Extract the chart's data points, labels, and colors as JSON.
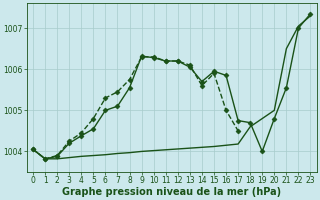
{
  "bg_color": "#cce8ec",
  "grid_color": "#a8cccc",
  "line_color": "#1a5218",
  "xlabel": "Graphe pression niveau de la mer (hPa)",
  "xlabel_fontsize": 7,
  "tick_fontsize": 5.5,
  "xlim": [
    -0.5,
    23.5
  ],
  "ylim": [
    1003.5,
    1007.6
  ],
  "yticks": [
    1004,
    1005,
    1006,
    1007
  ],
  "xticks": [
    0,
    1,
    2,
    3,
    4,
    5,
    6,
    7,
    8,
    9,
    10,
    11,
    12,
    13,
    14,
    15,
    16,
    17,
    18,
    19,
    20,
    21,
    22,
    23
  ],
  "series": [
    {
      "x": [
        0,
        1,
        2,
        3,
        4,
        5,
        6,
        7,
        8,
        9,
        10,
        11,
        12,
        13,
        14,
        15,
        16,
        17,
        18,
        19,
        20,
        21,
        22,
        23
      ],
      "y": [
        1004.05,
        1003.82,
        1003.82,
        1003.85,
        1003.88,
        1003.9,
        1003.92,
        1003.95,
        1003.97,
        1004.0,
        1004.02,
        1004.04,
        1004.06,
        1004.08,
        1004.1,
        1004.12,
        1004.15,
        1004.18,
        1004.6,
        1004.8,
        1005.0,
        1006.5,
        1007.05,
        1007.3
      ],
      "style": "-",
      "linewidth": 1.0,
      "marker": null,
      "markersize": 0
    },
    {
      "x": [
        0,
        1,
        2,
        3,
        4,
        5,
        6,
        7,
        8,
        9,
        10,
        11,
        12,
        13,
        14,
        15,
        16,
        17
      ],
      "y": [
        1004.05,
        1003.82,
        1003.9,
        1004.25,
        1004.45,
        1004.8,
        1005.3,
        1005.45,
        1005.75,
        1006.3,
        1006.3,
        1006.2,
        1006.2,
        1006.1,
        1005.6,
        1005.9,
        1005.0,
        1004.5
      ],
      "style": "--",
      "linewidth": 1.0,
      "marker": "D",
      "markersize": 2.5
    },
    {
      "x": [
        0,
        1,
        2,
        3,
        4,
        5,
        6,
        7,
        8,
        9,
        10,
        11,
        12,
        13,
        14,
        15,
        16,
        17,
        18,
        19,
        20,
        21,
        22,
        23
      ],
      "y": [
        1004.05,
        1003.82,
        1003.88,
        1004.2,
        1004.38,
        1004.55,
        1005.0,
        1005.1,
        1005.55,
        1006.32,
        1006.28,
        1006.2,
        1006.2,
        1006.05,
        1005.7,
        1005.95,
        1005.85,
        1004.75,
        1004.7,
        1004.0,
        1004.8,
        1005.55,
        1007.0,
        1007.35
      ],
      "style": "-",
      "linewidth": 1.0,
      "marker": "D",
      "markersize": 2.5
    }
  ]
}
